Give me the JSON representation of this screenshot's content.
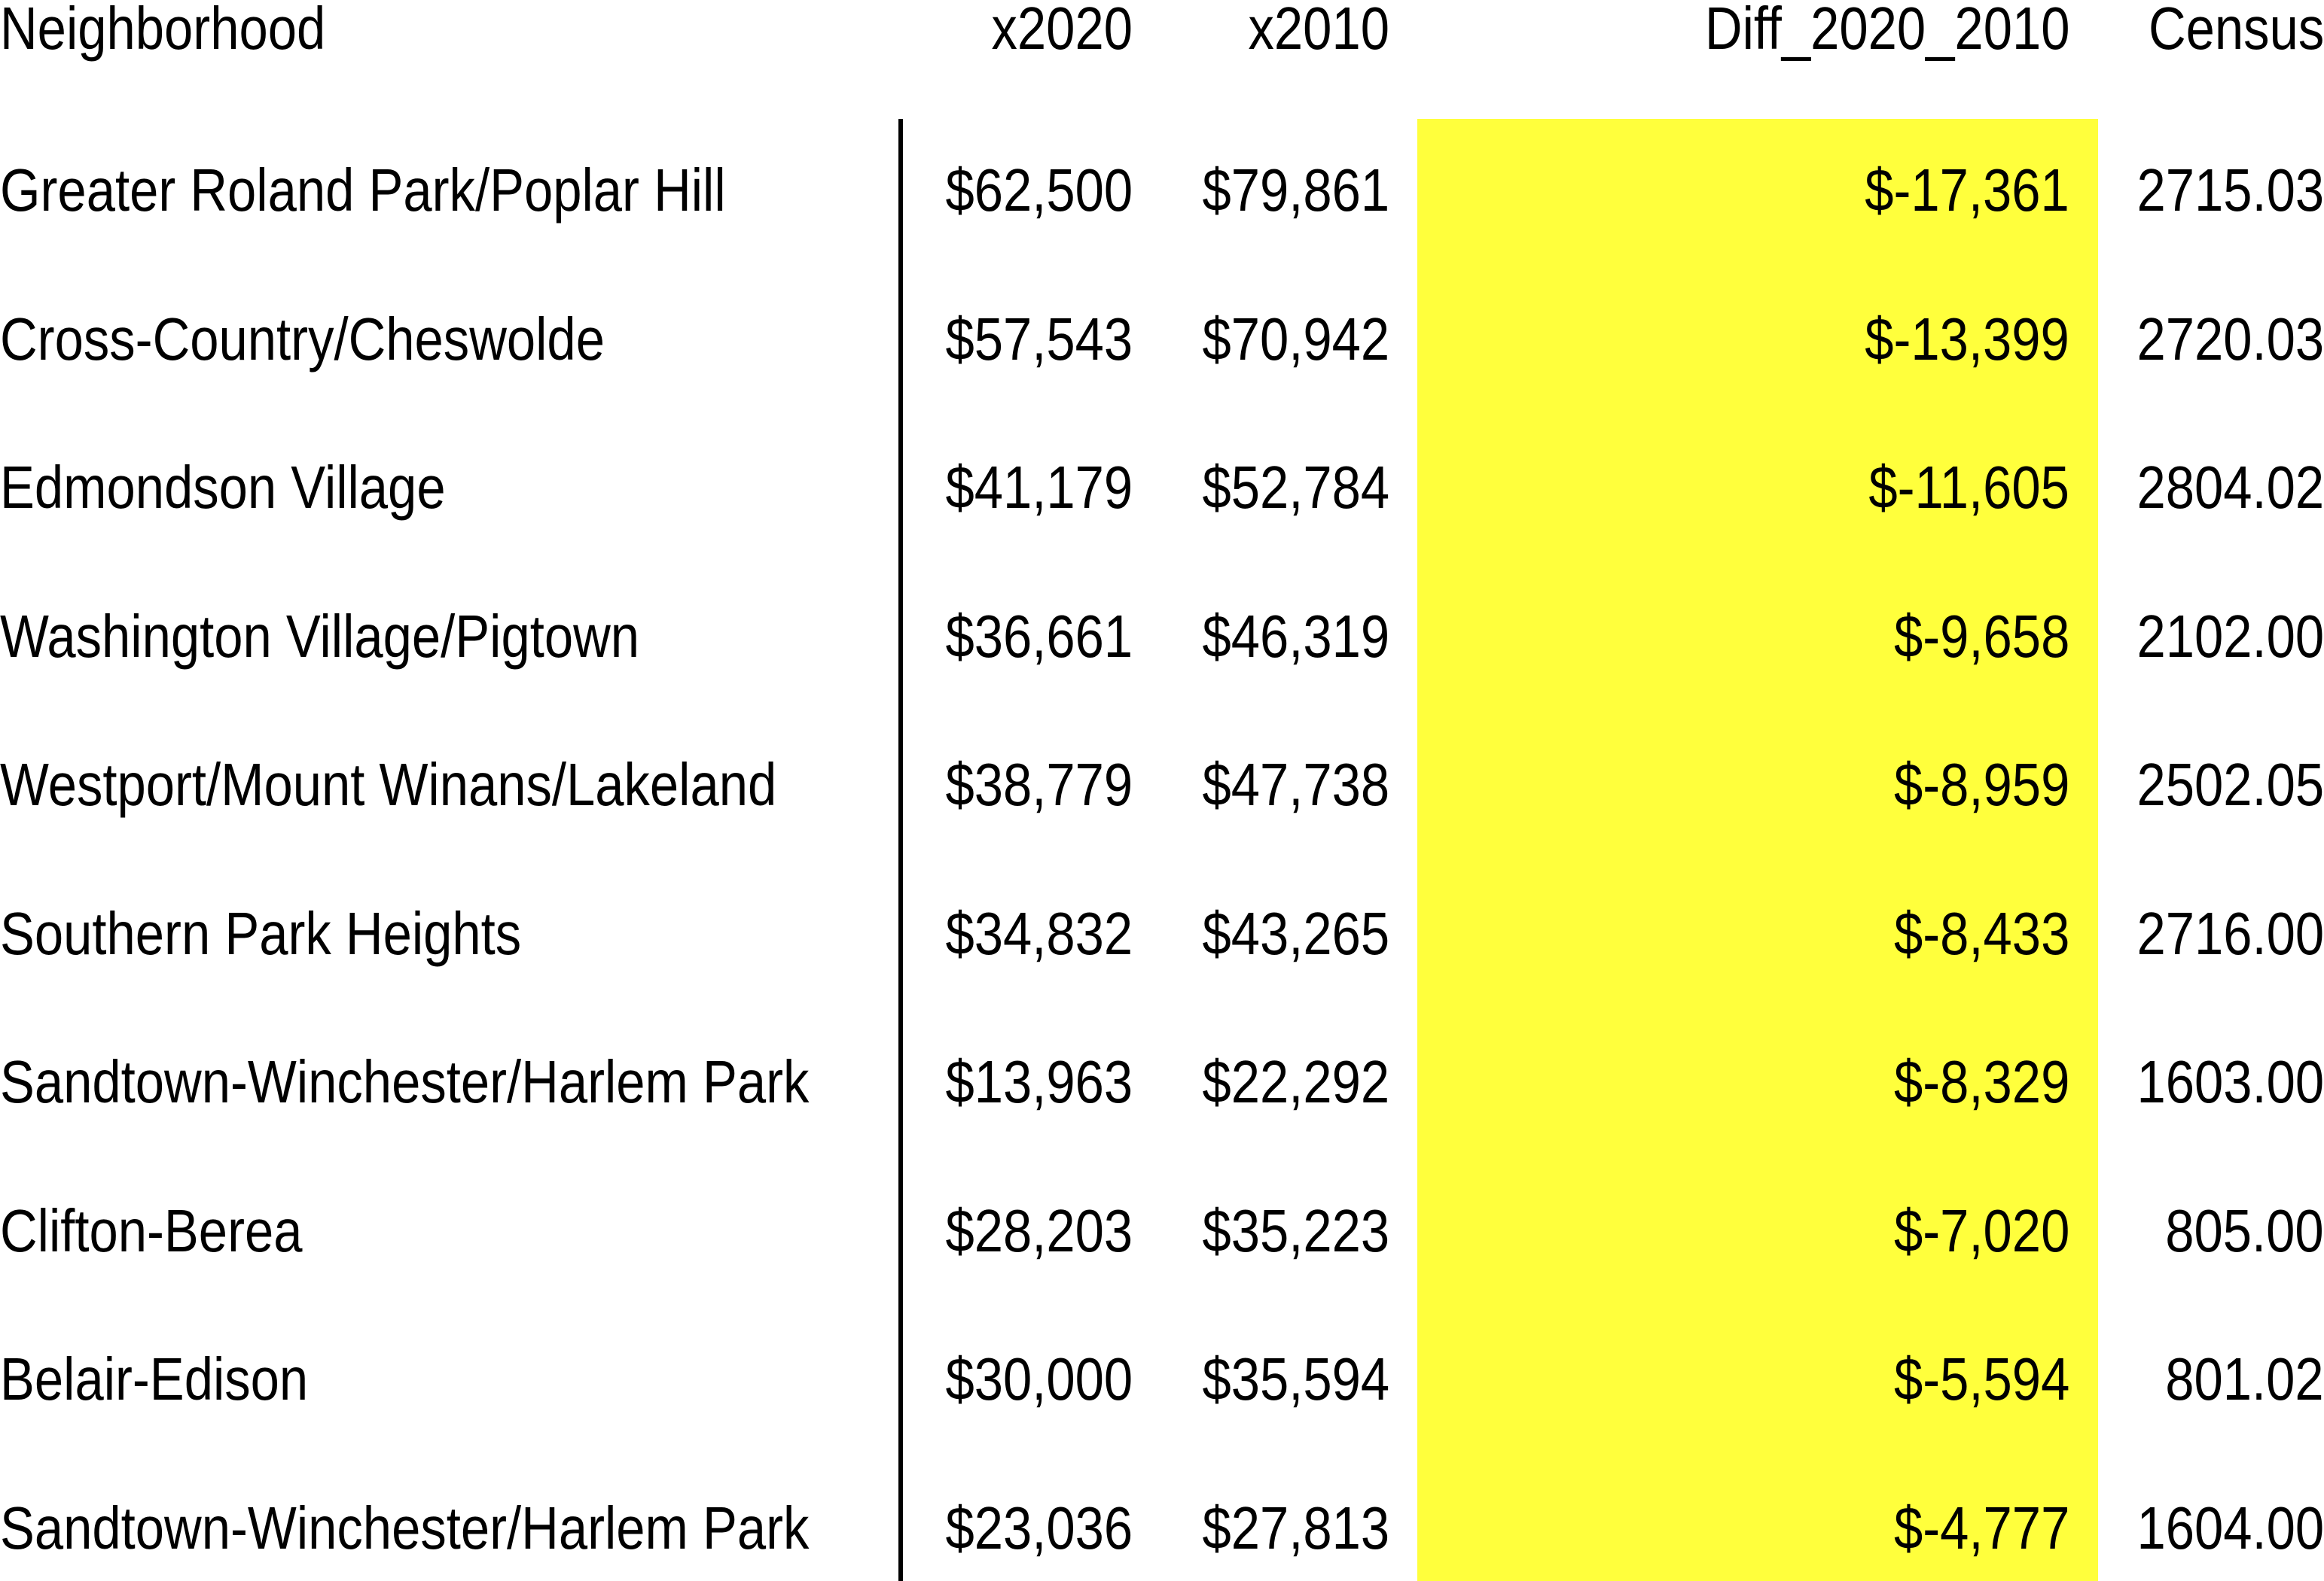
{
  "chart_data": {
    "type": "table",
    "highlight_color": "#FFFF3C",
    "highlighted_column": "Diff_2020_2010",
    "columns": [
      "Neighborhood",
      "x2020",
      "x2010",
      "Diff_2020_2010",
      "Census"
    ],
    "rows": [
      [
        "Greater Roland Park/Poplar Hill",
        "$62,500",
        "$79,861",
        "$-17,361",
        "2715.03"
      ],
      [
        "Cross-Country/Cheswolde",
        "$57,543",
        "$70,942",
        "$-13,399",
        "2720.03"
      ],
      [
        "Edmondson Village",
        "$41,179",
        "$52,784",
        "$-11,605",
        "2804.02"
      ],
      [
        "Washington Village/Pigtown",
        "$36,661",
        "$46,319",
        "$-9,658",
        "2102.00"
      ],
      [
        "Westport/Mount Winans/Lakeland",
        "$38,779",
        "$47,738",
        "$-8,959",
        "2502.05"
      ],
      [
        "Southern Park Heights",
        "$34,832",
        "$43,265",
        "$-8,433",
        "2716.00"
      ],
      [
        "Sandtown-Winchester/Harlem Park",
        "$13,963",
        "$22,292",
        "$-8,329",
        "1603.00"
      ],
      [
        "Clifton-Berea",
        "$28,203",
        "$35,223",
        "$-7,020",
        "805.00"
      ],
      [
        "Belair-Edison",
        "$30,000",
        "$35,594",
        "$-5,594",
        "801.02"
      ],
      [
        "Sandtown-Winchester/Harlem Park",
        "$23,036",
        "$27,813",
        "$-4,777",
        "1604.00"
      ]
    ]
  }
}
